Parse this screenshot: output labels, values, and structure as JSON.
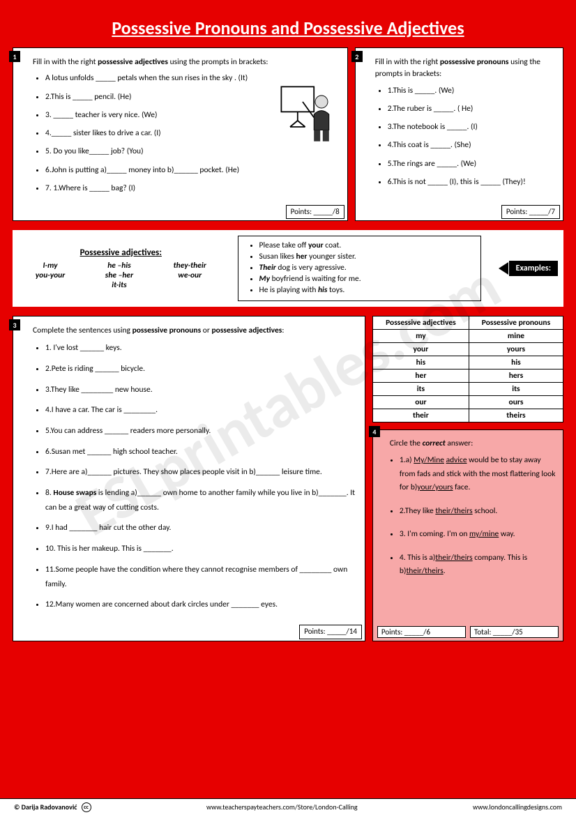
{
  "title": "Possessive Pronouns and Possessive Adjectives",
  "watermark": "ESLprintables.com",
  "panel1": {
    "num": "1",
    "intro_pre": "Fill in with the right ",
    "intro_bold": "possessive adjectives",
    "intro_post": " using the prompts in brackets:",
    "items": [
      "A lotus unfolds _____ petals when the sun rises in the sky . (It)",
      "2.This is _____ pencil. (He)",
      "3. _____ teacher is very nice. (We)",
      "4._____ sister likes to drive a car. (I)",
      "5. Do you like_____ job? (You)",
      "6.John is putting  a)_____ money into b)______ pocket. (He)",
      "7. 1.Where is _____ bag? (I)"
    ],
    "points": "Points: _____/8"
  },
  "panel2": {
    "num": "2",
    "intro_pre": "Fill in with the right ",
    "intro_bold": "possessive pronouns",
    "intro_post": " using the prompts in brackets:",
    "items": [
      "1.This is _____. (We)",
      "2.The ruber  is _____. ( He)",
      "3.The notebook is _____. (I)",
      "4.This coat is _____. (She)",
      "5.The rings are _____. (We)",
      "6.This is not _____ (I), this is _____ (They)!"
    ],
    "points": "Points: _____/7"
  },
  "mid": {
    "hdr": "Possessive adjectives:",
    "col1": [
      "I-my",
      "you-your"
    ],
    "col2": [
      "he –his",
      "she –her",
      "it-its"
    ],
    "col3": [
      "they-their",
      "we-our"
    ],
    "examples_label": "Examples:",
    "examples": [
      {
        "pre": "Please take off ",
        "b": "your",
        "post": " coat."
      },
      {
        "pre": "Susan likes ",
        "b": "her",
        "post": " younger sister."
      },
      {
        "pre": "",
        "bi": "Their",
        "post": " dog is very agressive."
      },
      {
        "pre": "",
        "bi": "My",
        "post": " boyfriend is waiting for me."
      },
      {
        "pre": "He is playing with ",
        "bi": "his",
        "post": " toys."
      }
    ]
  },
  "panel3": {
    "num": "3",
    "intro_pre": "Complete the sentences using ",
    "intro_b1": "possessive pronouns",
    "intro_mid": " or ",
    "intro_b2": "possessive adjectives",
    "intro_post": ":",
    "items": [
      "1. I've lost ______ keys.",
      "2.Pete is riding ______ bicycle.",
      "3.They like ________ new house.",
      "4.I have a car. The car is ________.",
      "5.You can address ______ readers more personally.",
      "6.Susan met ______ high school teacher.",
      "7.Here are a)______ pictures. They show places people visit in b)______ leisure time.",
      "8. <b>House swaps</b> is lending a)______ own home to another family while you live in b)_______. It can be a great way of cutting costs.",
      "9.I had _______ hair cut the other day.",
      "10. This is her makeup. This is _______.",
      "11.Some people have the condition where they cannot recognise members of ________ own family.",
      "12.Many women are concerned about dark circles under _______ eyes."
    ],
    "points": "Points: _____/14"
  },
  "table": {
    "h1": "Possessive adjectives",
    "h2": "Possessive pronouns",
    "rows": [
      [
        "my",
        "mine"
      ],
      [
        "your",
        "yours"
      ],
      [
        "his",
        "his"
      ],
      [
        "her",
        "hers"
      ],
      [
        "its",
        "its"
      ],
      [
        "our",
        "ours"
      ],
      [
        "their",
        "theirs"
      ]
    ]
  },
  "panel4": {
    "num": "4",
    "intro_pre": "Circle the ",
    "intro_bi": "correct",
    "intro_post": " answer:",
    "items": [
      "1.a) <u>My/Mine</u> <u>advice</u> would be to stay away from fads and stick with the most flattering look for b)<u>your/yours</u> face.",
      "2.They like <u>their/theirs</u> school.",
      "3. I'm coming. I'm on <u>my/mine</u> way.",
      "4. This is a)<u>their/theirs</u> company. This is b)<u>their/theirs</u>."
    ],
    "points": "Points: _____/6",
    "total": "Total: _____/35"
  },
  "footer": {
    "author": "© Darija Radovanović",
    "link1": "www.teacherspayteachers.com/Store/London-Calling",
    "link2": "www.londoncallingdesigns.com"
  }
}
